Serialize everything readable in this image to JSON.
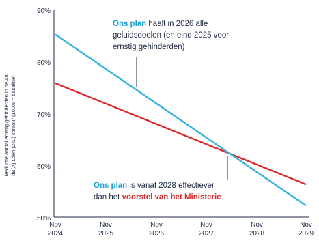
{
  "chart_data": {
    "type": "line",
    "ylabel_lines": [
      "Reductie aantal ernstig gehinderden in de 48",
      "dB(A) Lden (24u) contour (100% = baseline)"
    ],
    "x": [
      "Nov 2024",
      "Nov 2025",
      "Nov 2026",
      "Nov 2027",
      "Nov 2028",
      "Nov 2029"
    ],
    "x_tick_labels": [
      [
        "Nov",
        "2024"
      ],
      [
        "Nov",
        "2025"
      ],
      [
        "Nov",
        "2026"
      ],
      [
        "Nov",
        "2027"
      ],
      [
        "Nov",
        "2028"
      ],
      [
        "Nov",
        "2029"
      ]
    ],
    "y_ticks": [
      "90%",
      "80%",
      "70%",
      "60%",
      "50%"
    ],
    "y_tick_values": [
      90,
      80,
      70,
      60,
      50
    ],
    "ylim": [
      50,
      90
    ],
    "grid": false,
    "series": [
      {
        "key": "ons_plan",
        "color": "#33b3e0",
        "points": [
          [
            0,
            85.2
          ],
          [
            5,
            52.2
          ]
        ]
      },
      {
        "key": "ministerie",
        "color": "#dd2a2a",
        "points": [
          [
            0,
            75.8
          ],
          [
            5,
            56.3
          ]
        ]
      }
    ],
    "annotations": {
      "top": {
        "line1": {
          "bold": "Ons plan",
          "rest": " haalt in 2026 alle"
        },
        "line2": "geluidsdoelen (en eind 2025 voor",
        "line3": "ernstig gehinderden)"
      },
      "bottom": {
        "line1": {
          "bold": "Ons plan",
          "rest": " is vanaf 2028 effectiever"
        },
        "line2": {
          "pre": "dan het ",
          "bold": "voorstel van het Ministerie"
        }
      }
    },
    "colors": {
      "axis": "#1f2a44",
      "blue": "#33b3e0",
      "blue_text": "#1aa3d8",
      "red": "#dd2a2a"
    }
  }
}
